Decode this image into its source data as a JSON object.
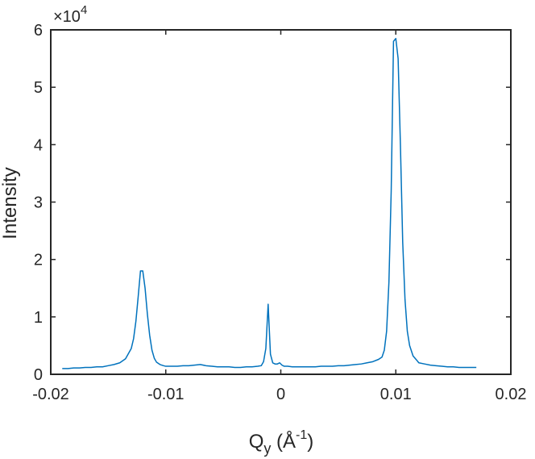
{
  "chart_data": {
    "type": "line",
    "xlabel": {
      "base": "Q",
      "sub": "y",
      "open": " (Å",
      "sup": "-1",
      "close": ")"
    },
    "ylabel": "Intensity",
    "y_multiplier": {
      "text": "×10",
      "exp": "4"
    },
    "xlim": [
      -0.02,
      0.02
    ],
    "ylim": [
      0,
      6
    ],
    "x_ticks": [
      {
        "value": -0.02,
        "label": "-0.02"
      },
      {
        "value": -0.01,
        "label": "-0.01"
      },
      {
        "value": 0,
        "label": "0"
      },
      {
        "value": 0.01,
        "label": "0.01"
      },
      {
        "value": 0.02,
        "label": "0.02"
      }
    ],
    "y_ticks": [
      {
        "value": 0,
        "label": "0"
      },
      {
        "value": 1,
        "label": "1"
      },
      {
        "value": 2,
        "label": "2"
      },
      {
        "value": 3,
        "label": "3"
      },
      {
        "value": 4,
        "label": "4"
      },
      {
        "value": 5,
        "label": "5"
      },
      {
        "value": 6,
        "label": "6"
      }
    ],
    "grid": false,
    "box": true,
    "line_color": "#0072BD",
    "series": [
      {
        "x": [
          -0.019,
          -0.0185,
          -0.018,
          -0.0175,
          -0.017,
          -0.0165,
          -0.016,
          -0.0155,
          -0.015,
          -0.0145,
          -0.014,
          -0.0135,
          -0.013,
          -0.0128,
          -0.0126,
          -0.0124,
          -0.0122,
          -0.012,
          -0.0118,
          -0.0116,
          -0.0114,
          -0.0112,
          -0.011,
          -0.0108,
          -0.0105,
          -0.0102,
          -0.01,
          -0.0095,
          -0.009,
          -0.0085,
          -0.008,
          -0.0075,
          -0.007,
          -0.0065,
          -0.006,
          -0.0055,
          -0.005,
          -0.0045,
          -0.004,
          -0.0035,
          -0.003,
          -0.0025,
          -0.002,
          -0.0017,
          -0.0015,
          -0.0013,
          -0.0011,
          -0.0009,
          -0.0007,
          -0.0005,
          -0.0003,
          -0.0001,
          0.0001,
          0.0003,
          0.0006,
          0.001,
          0.0015,
          0.002,
          0.0025,
          0.003,
          0.0035,
          0.004,
          0.0045,
          0.005,
          0.0055,
          0.006,
          0.0065,
          0.007,
          0.0075,
          0.008,
          0.0085,
          0.0088,
          0.009,
          0.0092,
          0.0094,
          0.0096,
          0.0098,
          0.01,
          0.0102,
          0.0104,
          0.0106,
          0.0108,
          0.011,
          0.0112,
          0.0115,
          0.0118,
          0.012,
          0.0125,
          0.013,
          0.0135,
          0.014,
          0.0145,
          0.015,
          0.0155,
          0.016,
          0.0165,
          0.017
        ],
        "y": [
          0.1,
          0.1,
          0.11,
          0.11,
          0.12,
          0.12,
          0.13,
          0.13,
          0.15,
          0.17,
          0.2,
          0.27,
          0.45,
          0.62,
          0.92,
          1.35,
          1.8,
          1.8,
          1.5,
          1.05,
          0.68,
          0.42,
          0.28,
          0.21,
          0.17,
          0.15,
          0.14,
          0.14,
          0.14,
          0.15,
          0.15,
          0.16,
          0.17,
          0.15,
          0.14,
          0.13,
          0.13,
          0.13,
          0.12,
          0.12,
          0.13,
          0.13,
          0.14,
          0.15,
          0.22,
          0.45,
          1.22,
          0.35,
          0.2,
          0.18,
          0.18,
          0.2,
          0.16,
          0.14,
          0.14,
          0.13,
          0.13,
          0.13,
          0.13,
          0.13,
          0.14,
          0.14,
          0.14,
          0.15,
          0.15,
          0.16,
          0.17,
          0.18,
          0.2,
          0.22,
          0.26,
          0.3,
          0.42,
          0.75,
          1.6,
          3.2,
          5.8,
          5.85,
          5.5,
          4.0,
          2.3,
          1.3,
          0.75,
          0.5,
          0.32,
          0.25,
          0.2,
          0.18,
          0.16,
          0.15,
          0.14,
          0.13,
          0.13,
          0.12,
          0.12,
          0.12,
          0.12
        ]
      }
    ]
  }
}
